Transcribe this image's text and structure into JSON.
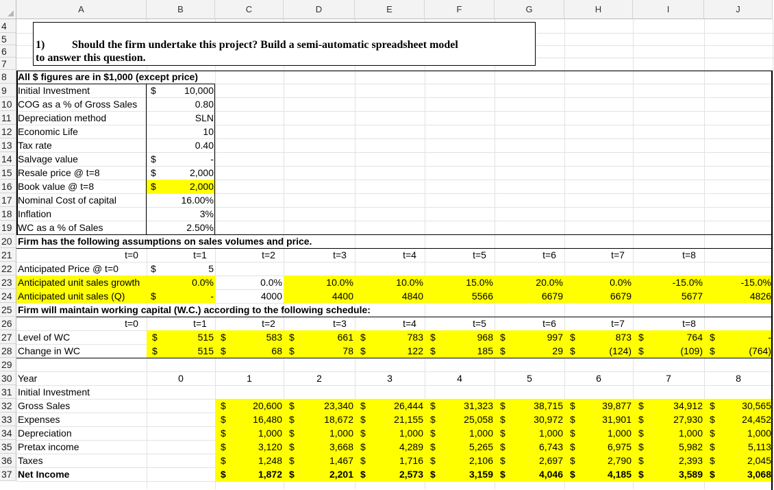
{
  "columns": [
    "A",
    "B",
    "C",
    "D",
    "E",
    "F",
    "G",
    "H",
    "I",
    "J"
  ],
  "rows": [
    "4",
    "5",
    "6",
    "7",
    "8",
    "9",
    "10",
    "11",
    "12",
    "13",
    "14",
    "15",
    "16",
    "17",
    "18",
    "19",
    "20",
    "21",
    "22",
    "23",
    "24",
    "25",
    "26",
    "27",
    "28",
    "29",
    "30",
    "31",
    "32",
    "33",
    "34",
    "35",
    "36",
    "37"
  ],
  "title": {
    "num": "1)",
    "line1": "Should the firm undertake this project? Build a semi-automatic spreadsheet model",
    "line2": "to answer this question."
  },
  "header_note": "All $ figures are in $1,000 (except price)",
  "inputs": [
    {
      "label": "Initial Investment",
      "sym": "$",
      "value": "10,000"
    },
    {
      "label": "COG as a % of  Gross Sales",
      "sym": "",
      "value": "0.80"
    },
    {
      "label": "Depreciation method",
      "sym": "",
      "value": "SLN"
    },
    {
      "label": "Economic Life",
      "sym": "",
      "value": "10"
    },
    {
      "label": "Tax rate",
      "sym": "",
      "value": "0.40"
    },
    {
      "label": "Salvage value",
      "sym": "$",
      "value": "-"
    },
    {
      "label": "Resale price @ t=8",
      "sym": "$",
      "value": "2,000"
    },
    {
      "label": "Book value @ t=8",
      "sym": "$",
      "value": "2,000"
    },
    {
      "label": "Nominal Cost of capital",
      "sym": "",
      "value": "16.00%"
    },
    {
      "label": "Inflation",
      "sym": "",
      "value": "3%"
    },
    {
      "label": "WC as a % of Sales",
      "sym": "",
      "value": "2.50%"
    }
  ],
  "sales_note": "Firm has the following assumptions on sales volumes and price.",
  "periods": [
    "t=0",
    "t=1",
    "t=2",
    "t=3",
    "t=4",
    "t=5",
    "t=6",
    "t=7",
    "t=8"
  ],
  "price": {
    "label": "Anticipated Price @ t=0",
    "sym": "$",
    "value": "5"
  },
  "growth": {
    "label": "Anticipated unit sales growth",
    "values": [
      "0.0%",
      "0.0%",
      "10.0%",
      "10.0%",
      "15.0%",
      "20.0%",
      "0.0%",
      "-15.0%",
      "-15.0%"
    ]
  },
  "units": {
    "label": "Anticipated unit sales (Q)",
    "sym": "$",
    "values": [
      "-",
      "4000",
      "4400",
      "4840",
      "5566",
      "6679",
      "6679",
      "5677",
      "4826"
    ]
  },
  "wc_note": "Firm will maintain working capital (W.C.) according to the following schedule:",
  "wc_level": {
    "label": "Level of WC",
    "values": [
      "515",
      "583",
      "661",
      "783",
      "968",
      "997",
      "873",
      "764",
      "-"
    ]
  },
  "wc_change": {
    "label": "Change in WC",
    "values": [
      "515",
      "68",
      "78",
      "122",
      "185",
      "29",
      "(124)",
      "(109)",
      "(764)"
    ]
  },
  "year": {
    "label": "Year",
    "values": [
      "0",
      "1",
      "2",
      "3",
      "4",
      "5",
      "6",
      "7",
      "8"
    ]
  },
  "income_rows": [
    {
      "label": "Initial Investment",
      "bold": false,
      "values": []
    },
    {
      "label": "Gross Sales",
      "bold": false,
      "values": [
        "20,600",
        "23,340",
        "26,444",
        "31,323",
        "38,715",
        "39,877",
        "34,912",
        "30,565"
      ]
    },
    {
      "label": "Expenses",
      "bold": false,
      "values": [
        "16,480",
        "18,672",
        "21,155",
        "25,058",
        "30,972",
        "31,901",
        "27,930",
        "24,452"
      ]
    },
    {
      "label": "Depreciation",
      "bold": false,
      "values": [
        "1,000",
        "1,000",
        "1,000",
        "1,000",
        "1,000",
        "1,000",
        "1,000",
        "1,000"
      ]
    },
    {
      "label": "Pretax income",
      "bold": false,
      "values": [
        "3,120",
        "3,668",
        "4,289",
        "5,265",
        "6,743",
        "6,975",
        "5,982",
        "5,113"
      ]
    },
    {
      "label": "Taxes",
      "bold": false,
      "values": [
        "1,248",
        "1,467",
        "1,716",
        "2,106",
        "2,697",
        "2,790",
        "2,393",
        "2,045"
      ]
    },
    {
      "label": "Net Income",
      "bold": true,
      "values": [
        "1,872",
        "2,201",
        "2,573",
        "3,159",
        "4,046",
        "4,185",
        "3,589",
        "3,068"
      ]
    }
  ],
  "currency_symbol": "$",
  "highlight_color": "#ffff00"
}
